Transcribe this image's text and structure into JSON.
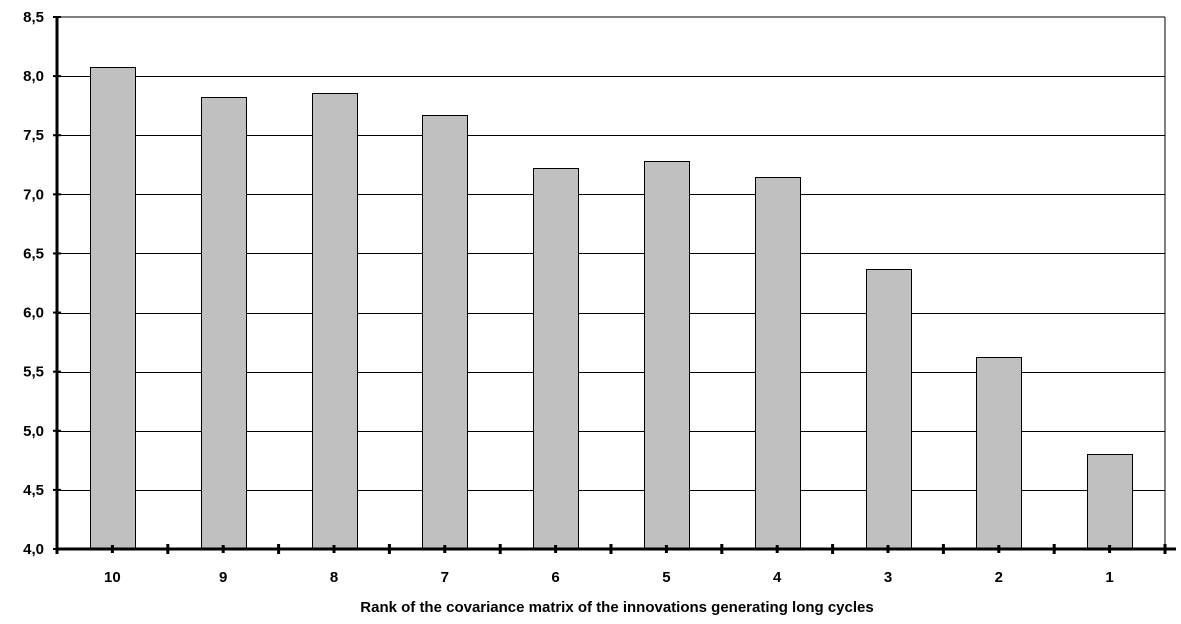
{
  "chart_data": {
    "type": "bar",
    "title": "",
    "xlabel": "Rank of the covariance matrix of the innovations generating long cycles",
    "ylabel": "",
    "categories": [
      "10",
      "9",
      "8",
      "7",
      "6",
      "5",
      "4",
      "3",
      "2",
      "1"
    ],
    "values": [
      8.08,
      7.82,
      7.86,
      7.67,
      7.22,
      7.28,
      7.15,
      6.37,
      5.62,
      4.8
    ],
    "ylim": [
      4.0,
      8.5
    ],
    "yticks": [
      "4,0",
      "4,5",
      "5,0",
      "5,5",
      "6,0",
      "6,5",
      "7,0",
      "7,5",
      "8,0",
      "8,5"
    ],
    "grid": true,
    "legend": "none",
    "colors": {
      "bar_fill": "#c0c0c0",
      "bar_stroke": "#000000",
      "grid": "#000000",
      "axis": "#000000"
    }
  }
}
